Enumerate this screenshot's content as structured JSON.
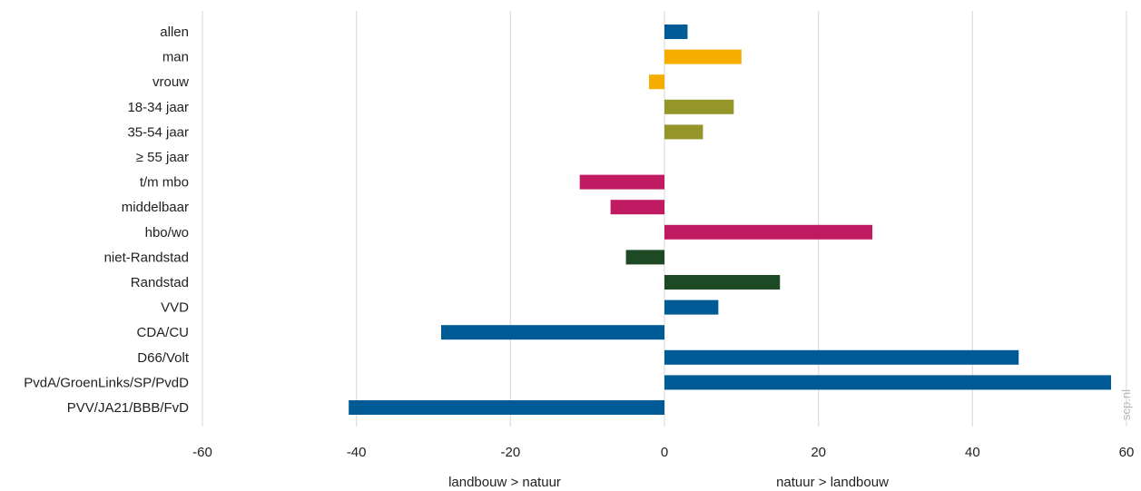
{
  "chart_data": {
    "type": "bar",
    "orientation": "horizontal",
    "categories": [
      "allen",
      "man",
      "vrouw",
      "18-34 jaar",
      "35-54 jaar",
      "≥ 55 jaar",
      "t/m mbo",
      "middelbaar",
      "hbo/wo",
      "niet-Randstad",
      "Randstad",
      "VVD",
      "CDA/CU",
      "D66/Volt",
      "PvdA/GroenLinks/SP/PvdD",
      "PVV/JA21/BBB/FvD"
    ],
    "values": [
      3,
      10,
      -2,
      9,
      5,
      0,
      -11,
      -7,
      27,
      -5,
      15,
      7,
      -29,
      46,
      58,
      -41
    ],
    "colors": [
      "#005a96",
      "#f5ad00",
      "#f5ad00",
      "#94962a",
      "#94962a",
      "#94962a",
      "#c01b62",
      "#c01b62",
      "#c01b62",
      "#1d4a24",
      "#1d4a24",
      "#005a96",
      "#005a96",
      "#005a96",
      "#005a96",
      "#005a96"
    ],
    "xlim": [
      -60,
      60
    ],
    "xticks": [
      -60,
      -40,
      -20,
      0,
      20,
      40,
      60
    ],
    "grid": true,
    "legend": "none",
    "direction_labels": {
      "negative": "landbouw > natuur",
      "positive": "natuur > landbouw"
    },
    "watermark": "scp.nl"
  }
}
